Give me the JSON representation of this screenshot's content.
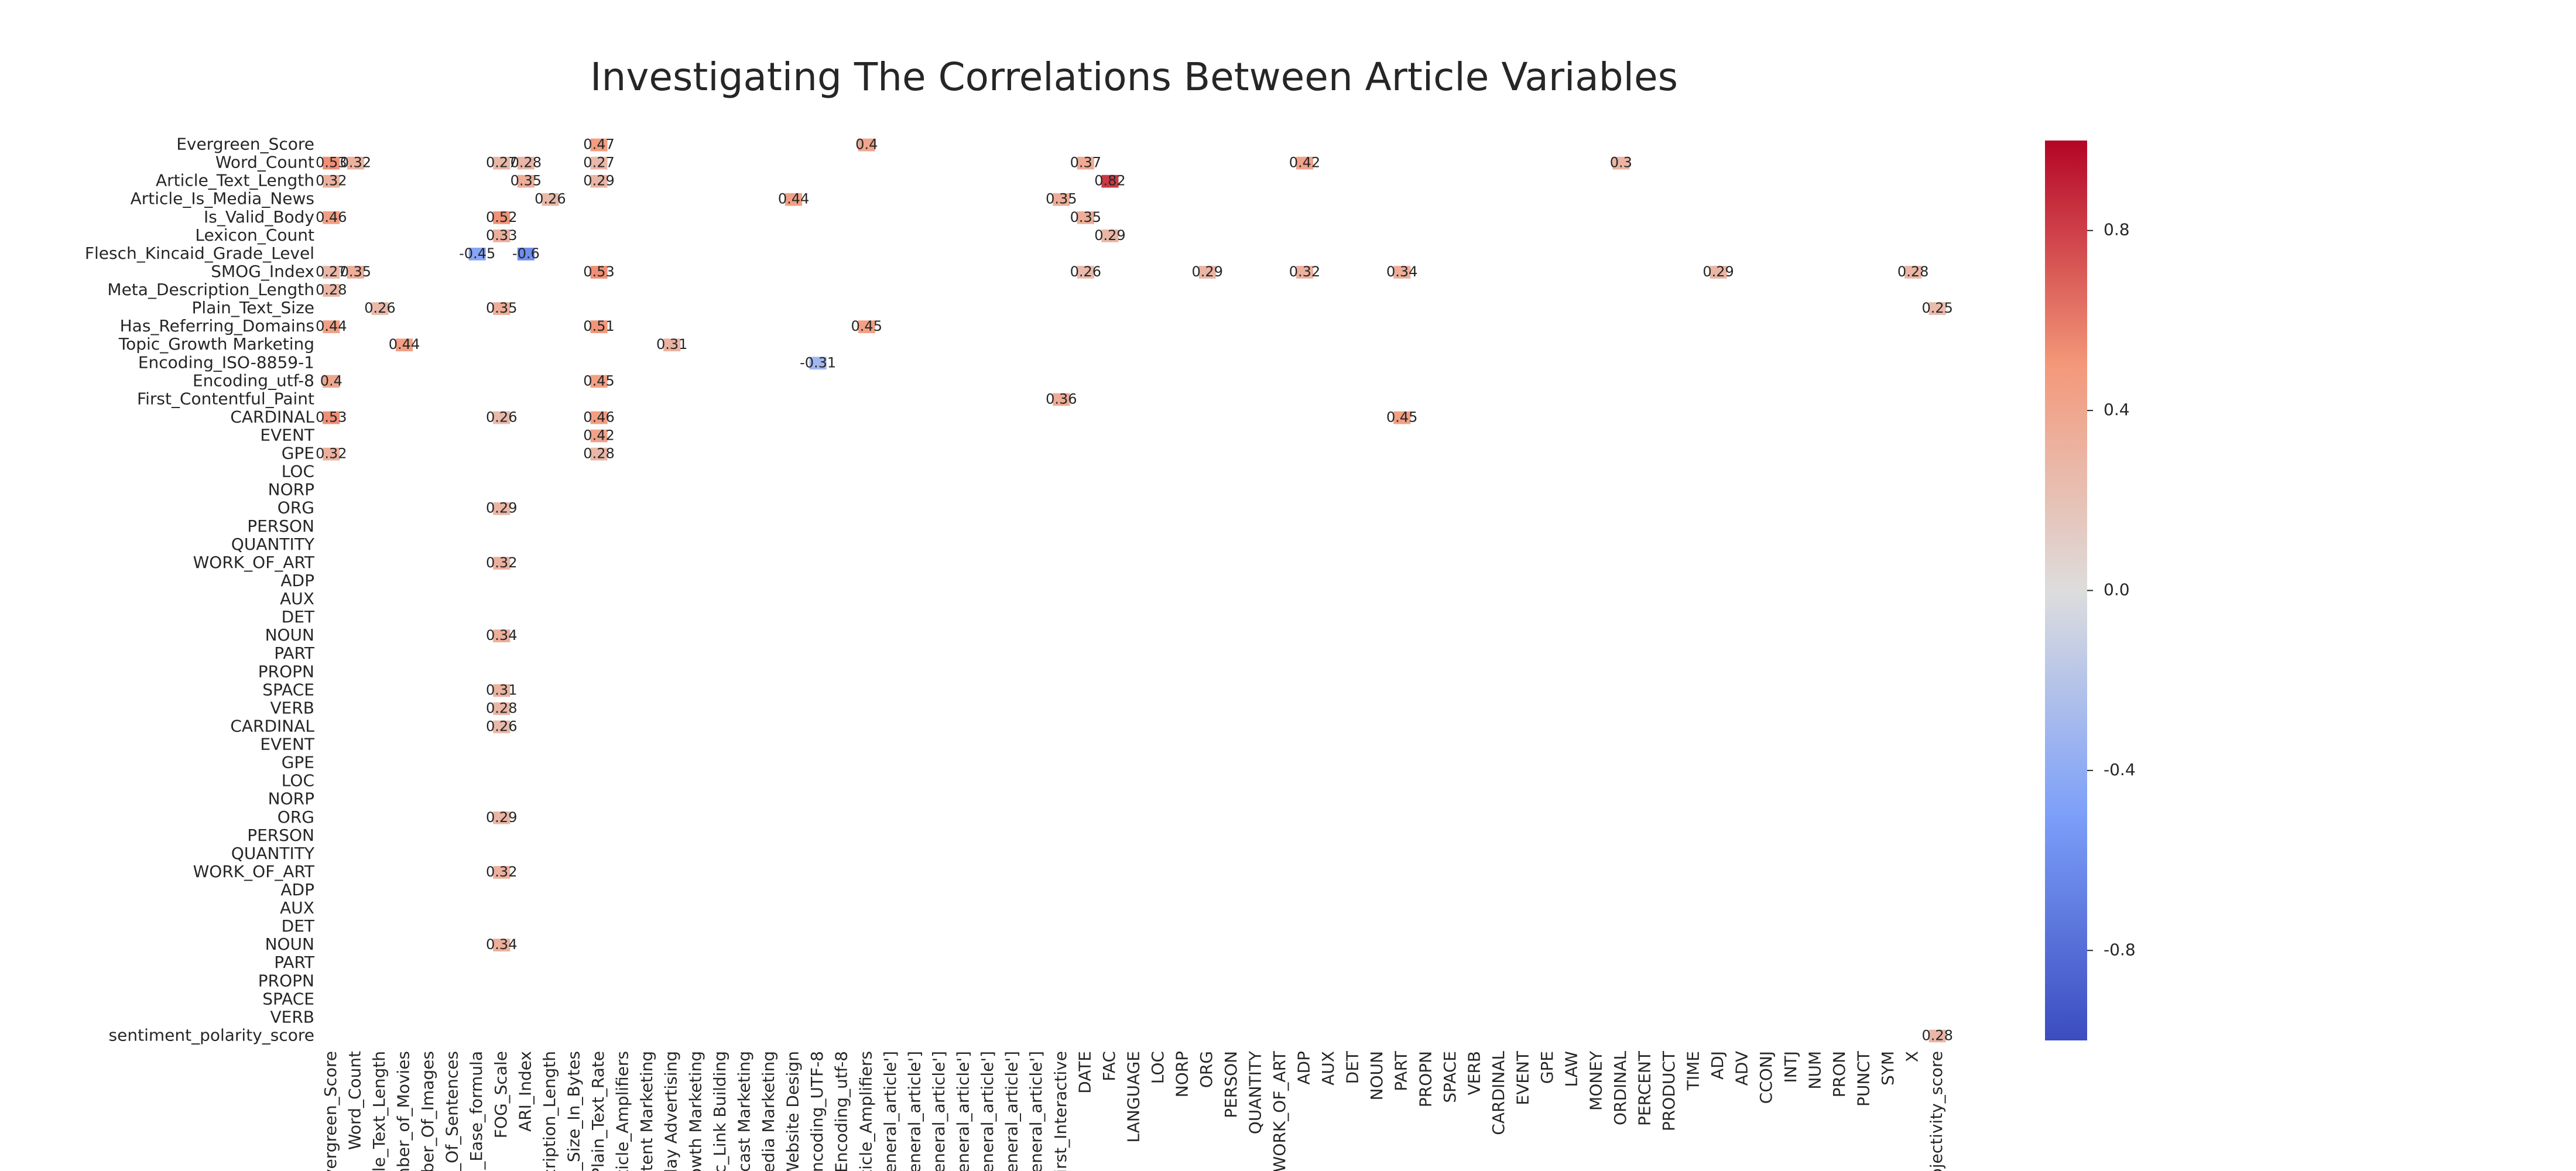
{
  "chart_data": {
    "type": "heatmap",
    "title": "Investigating The Correlations Between Article Variables",
    "y_categories": [
      "Evergreen_Score",
      "Word_Count",
      "Article_Text_Length",
      "Article_Is_Media_News",
      "Is_Valid_Body",
      "Lexicon_Count",
      "Flesch_Kincaid_Grade_Level",
      "SMOG_Index",
      "Meta_Description_Length",
      "Plain_Text_Size",
      "Has_Referring_Domains",
      "Topic_Growth Marketing",
      "Encoding_ISO-8859-1",
      "Encoding_utf-8",
      "First_Contentful_Paint",
      "CARDINAL",
      "EVENT",
      "GPE",
      "LOC",
      "NORP",
      "ORG",
      "PERSON",
      "QUANTITY",
      "WORK_OF_ART",
      "ADP",
      "AUX",
      "DET",
      "NOUN",
      "PART",
      "PROPN",
      "SPACE",
      "VERB",
      "CARDINAL",
      "EVENT",
      "GPE",
      "LOC",
      "NORP",
      "ORG",
      "PERSON",
      "QUANTITY",
      "WORK_OF_ART",
      "ADP",
      "AUX",
      "DET",
      "NOUN",
      "PART",
      "PROPN",
      "SPACE",
      "VERB",
      "sentiment_polarity_score"
    ],
    "x_categories": [
      "Evergreen_Score",
      "Word_Count",
      "rticle_Text_Length",
      "lumber_of_Movies",
      "umber_Of_Images",
      "ber_Of_Sentences",
      "ing_Ease_formula",
      "FOG_Scale",
      "ARI_Index",
      "Description_Length",
      "ge_Size_In_Bytes",
      "Plain_Text_Rate",
      "Article_Amplifiers",
      "Content Marketing",
      "isplay Advertising",
      "Growth Marketing",
      "opic_Link Building",
      "Podcast Marketing",
      "al Media Marketing",
      "ic_Website Design",
      "Encoding_UTF-8",
      "Encoding_utf-8",
      "Article_Amplifiers",
      "r', 'general_article']",
      "r', 'general_article']",
      "r', 'general_article']",
      "r', 'general_article']",
      "r', 'general_article']",
      "r', 'general_article']",
      "r', 'general_article']",
      "First_Interactive",
      "DATE",
      "FAC",
      "LANGUAGE",
      "LOC",
      "NORP",
      "ORG",
      "PERSON",
      "QUANTITY",
      "WORK_OF_ART",
      "ADP",
      "AUX",
      "DET",
      "NOUN",
      "PART",
      "PROPN",
      "SPACE",
      "VERB",
      "CARDINAL",
      "EVENT",
      "GPE",
      "LAW",
      "MONEY",
      "ORDINAL",
      "PERCENT",
      "PRODUCT",
      "TIME",
      "ADJ",
      "ADV",
      "CCONJ",
      "INTJ",
      "NUM",
      "PRON",
      "PUNCT",
      "SYM",
      "X",
      "subjectivity_score"
    ],
    "cells": [
      {
        "row": 0,
        "col": 11,
        "value": 0.47
      },
      {
        "row": 0,
        "col": 22,
        "value": 0.4
      },
      {
        "row": 1,
        "col": 0,
        "value": 0.53
      },
      {
        "row": 1,
        "col": 1,
        "value": 0.32
      },
      {
        "row": 1,
        "col": 7,
        "value": 0.27
      },
      {
        "row": 1,
        "col": 8,
        "value": 0.28
      },
      {
        "row": 1,
        "col": 11,
        "value": 0.27
      },
      {
        "row": 1,
        "col": 31,
        "value": 0.37
      },
      {
        "row": 1,
        "col": 40,
        "value": 0.42
      },
      {
        "row": 1,
        "col": 53,
        "value": 0.3
      },
      {
        "row": 2,
        "col": 0,
        "value": 0.32
      },
      {
        "row": 2,
        "col": 8,
        "value": 0.35
      },
      {
        "row": 2,
        "col": 11,
        "value": 0.29
      },
      {
        "row": 2,
        "col": 32,
        "value": 0.82
      },
      {
        "row": 3,
        "col": 9,
        "value": 0.26
      },
      {
        "row": 3,
        "col": 19,
        "value": 0.44
      },
      {
        "row": 3,
        "col": 30,
        "value": 0.35
      },
      {
        "row": 4,
        "col": 0,
        "value": 0.46
      },
      {
        "row": 4,
        "col": 7,
        "value": 0.52
      },
      {
        "row": 4,
        "col": 31,
        "value": 0.35
      },
      {
        "row": 5,
        "col": 7,
        "value": 0.33
      },
      {
        "row": 5,
        "col": 32,
        "value": 0.29
      },
      {
        "row": 6,
        "col": 6,
        "value": -0.45
      },
      {
        "row": 6,
        "col": 8,
        "value": -0.6
      },
      {
        "row": 7,
        "col": 0,
        "value": 0.27
      },
      {
        "row": 7,
        "col": 1,
        "value": 0.35
      },
      {
        "row": 7,
        "col": 11,
        "value": 0.53
      },
      {
        "row": 7,
        "col": 31,
        "value": 0.26
      },
      {
        "row": 7,
        "col": 36,
        "value": 0.29
      },
      {
        "row": 7,
        "col": 40,
        "value": 0.32
      },
      {
        "row": 7,
        "col": 44,
        "value": 0.34
      },
      {
        "row": 7,
        "col": 57,
        "value": 0.29
      },
      {
        "row": 7,
        "col": 65,
        "value": 0.28
      },
      {
        "row": 8,
        "col": 0,
        "value": 0.28
      },
      {
        "row": 9,
        "col": 2,
        "value": 0.26
      },
      {
        "row": 9,
        "col": 7,
        "value": 0.35
      },
      {
        "row": 9,
        "col": 66,
        "value": 0.25
      },
      {
        "row": 10,
        "col": 0,
        "value": 0.44
      },
      {
        "row": 10,
        "col": 11,
        "value": 0.51
      },
      {
        "row": 10,
        "col": 22,
        "value": 0.45
      },
      {
        "row": 11,
        "col": 3,
        "value": 0.44
      },
      {
        "row": 11,
        "col": 14,
        "value": 0.31
      },
      {
        "row": 12,
        "col": 20,
        "value": -0.31
      },
      {
        "row": 13,
        "col": 0,
        "value": 0.4
      },
      {
        "row": 13,
        "col": 11,
        "value": 0.45
      },
      {
        "row": 14,
        "col": 30,
        "value": 0.36
      },
      {
        "row": 15,
        "col": 0,
        "value": 0.53
      },
      {
        "row": 15,
        "col": 7,
        "value": 0.26
      },
      {
        "row": 15,
        "col": 11,
        "value": 0.46
      },
      {
        "row": 15,
        "col": 44,
        "value": 0.45
      },
      {
        "row": 16,
        "col": 11,
        "value": 0.42
      },
      {
        "row": 17,
        "col": 0,
        "value": 0.32
      },
      {
        "row": 17,
        "col": 11,
        "value": 0.28
      },
      {
        "row": 20,
        "col": 7,
        "value": 0.29
      },
      {
        "row": 23,
        "col": 7,
        "value": 0.32
      },
      {
        "row": 27,
        "col": 7,
        "value": 0.34
      },
      {
        "row": 30,
        "col": 7,
        "value": 0.31
      },
      {
        "row": 31,
        "col": 7,
        "value": 0.28
      },
      {
        "row": 32,
        "col": 7,
        "value": 0.26
      },
      {
        "row": 37,
        "col": 7,
        "value": 0.29
      },
      {
        "row": 40,
        "col": 7,
        "value": 0.32
      },
      {
        "row": 44,
        "col": 7,
        "value": 0.34
      },
      {
        "row": 49,
        "col": 66,
        "value": 0.28
      }
    ],
    "zlim": [
      -1,
      1
    ],
    "zticks": [
      -0.8,
      -0.4,
      {
        "value": 0,
        "label": "0.0"
      },
      0.4,
      0.8
    ],
    "colormap": "coolwarm"
  }
}
